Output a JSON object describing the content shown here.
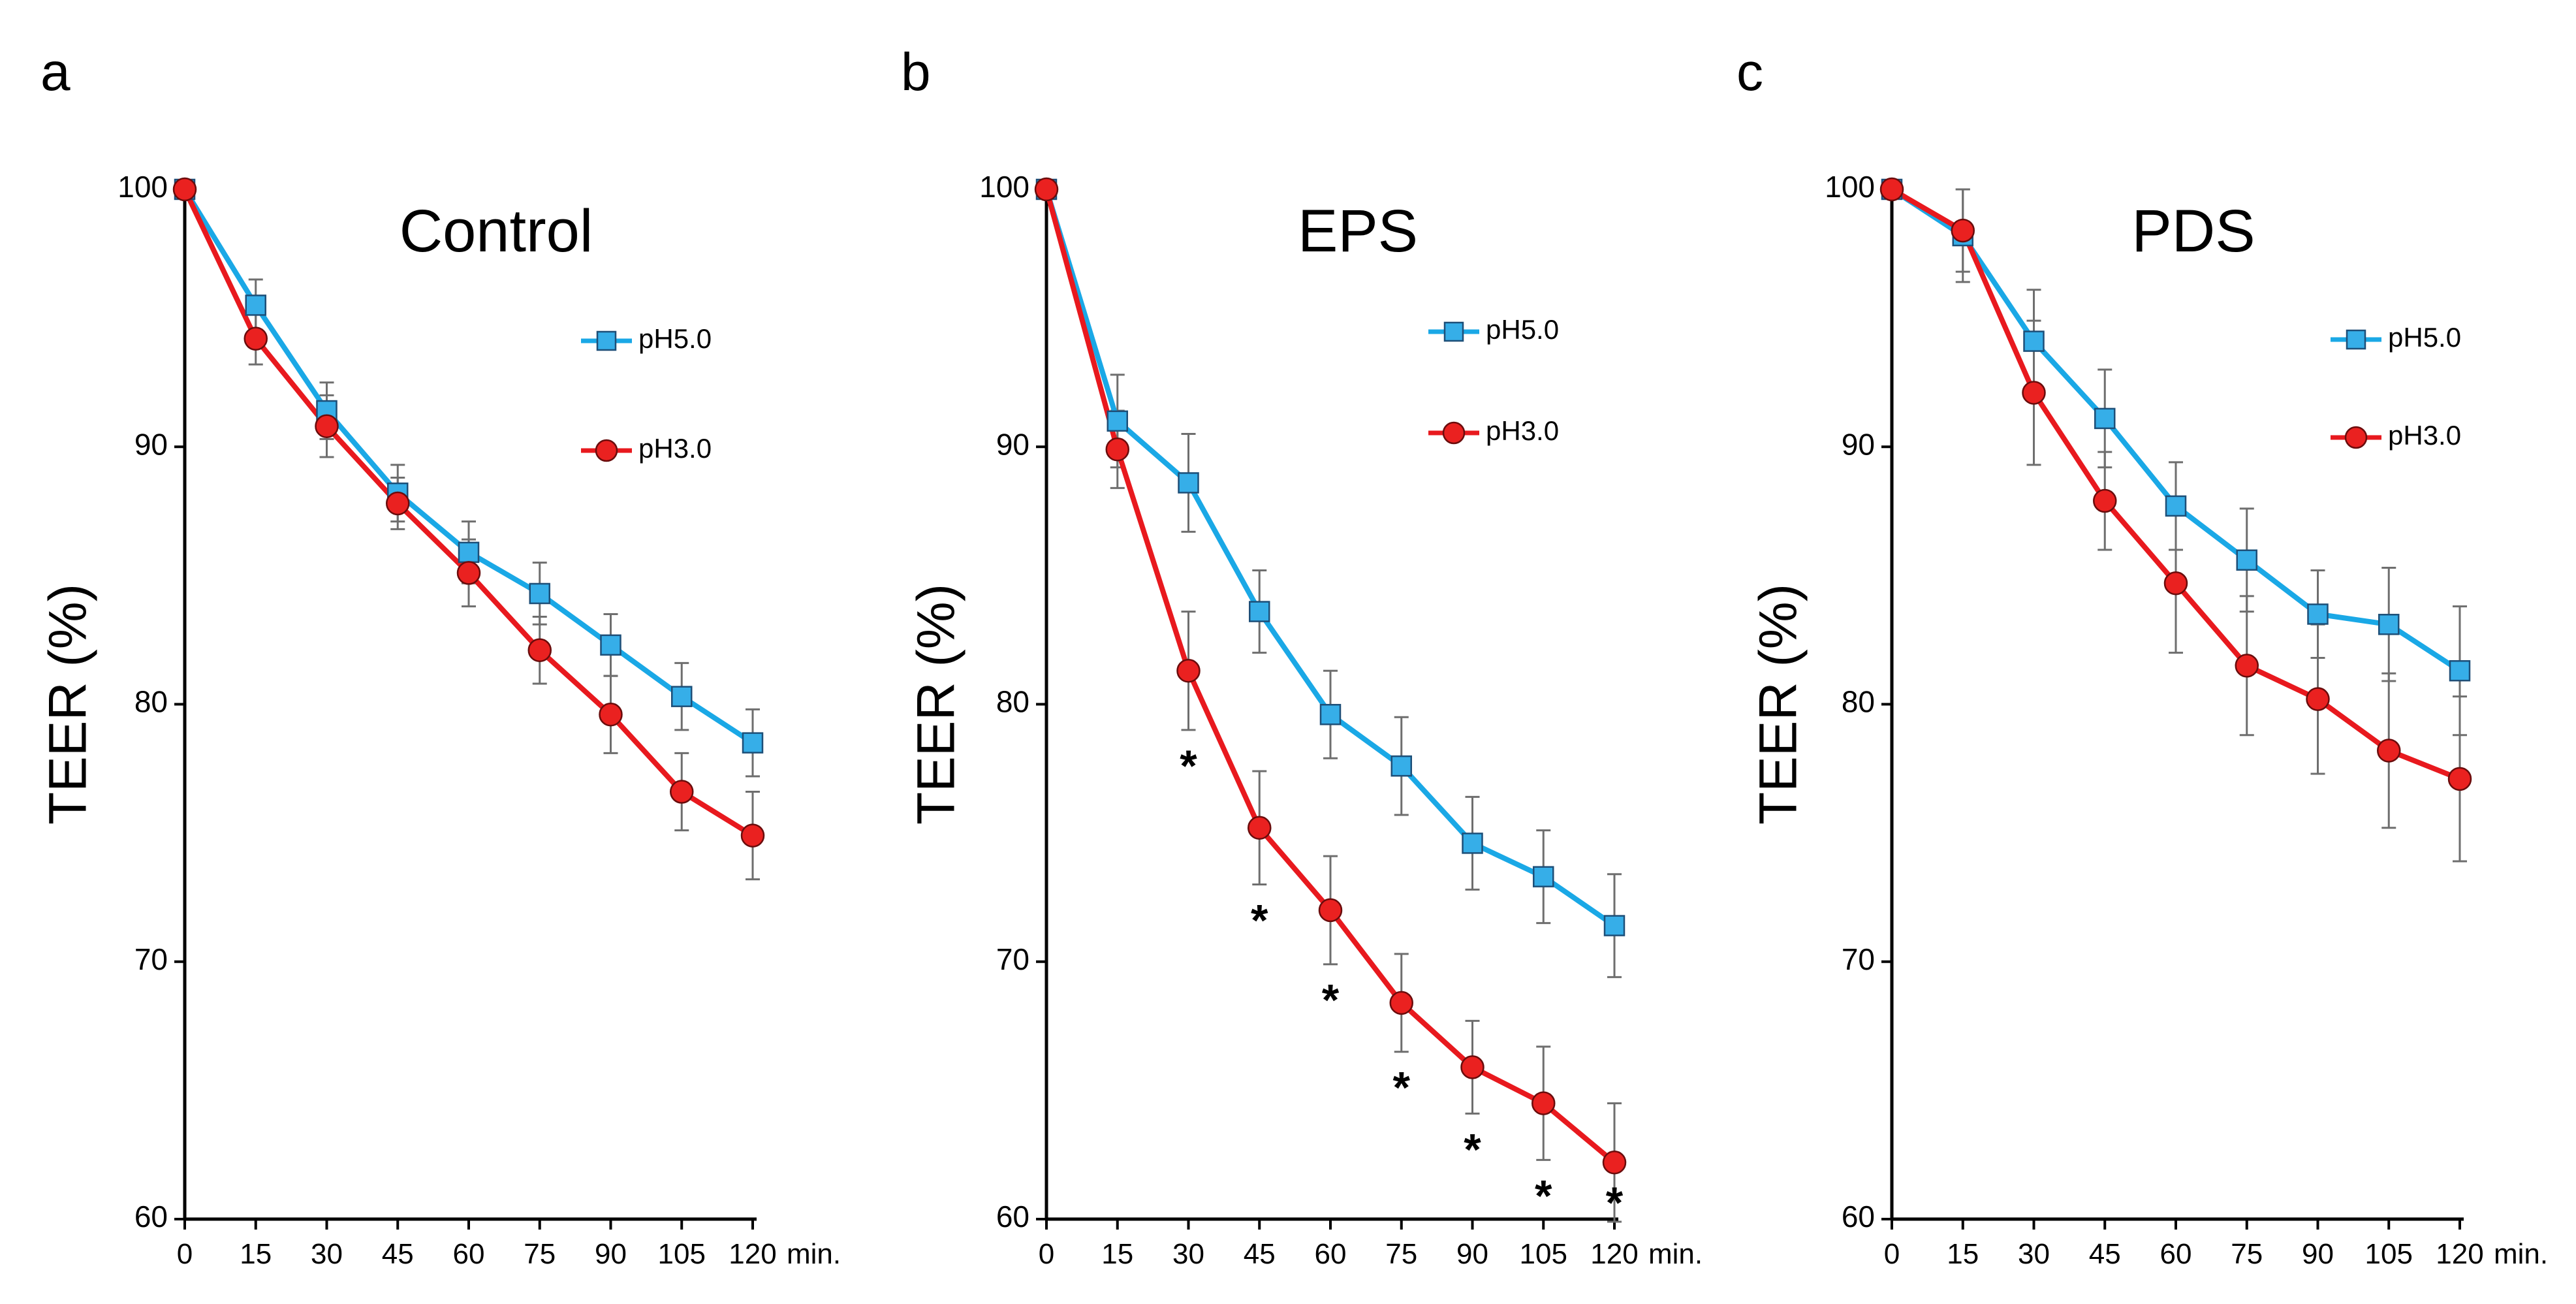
{
  "colors": {
    "ph50_line": "#1aa8e6",
    "ph50_marker": "#36aee8",
    "ph30_line": "#e8191e",
    "ph30_marker": "#ea2120",
    "errorbar": "#6e6e6e",
    "axis": "#000000"
  },
  "chart_data": [
    {
      "type": "line",
      "panel": "a",
      "title": "Control",
      "xlabel": "",
      "x_unit": "min.",
      "ylabel": "TEER (%)",
      "ylim": [
        60,
        100
      ],
      "yticks": [
        "60",
        "70",
        "80",
        "90",
        "100"
      ],
      "x": [
        0,
        15,
        30,
        45,
        60,
        75,
        90,
        105,
        120
      ],
      "x_ticklabels": [
        "0",
        "15",
        "30",
        "45",
        "60",
        "75",
        "90",
        "105",
        "120"
      ],
      "grid": false,
      "legend_position": "right",
      "series": [
        {
          "name": "pH5.0",
          "marker": "square",
          "values": [
            100,
            95.5,
            91.4,
            88.2,
            85.9,
            84.3,
            82.3,
            80.3,
            78.5
          ],
          "errors": [
            0,
            1.0,
            1.1,
            1.1,
            1.2,
            1.2,
            1.2,
            1.3,
            1.3
          ]
        },
        {
          "name": "pH3.0",
          "marker": "circle",
          "values": [
            100,
            94.2,
            90.8,
            87.8,
            85.1,
            82.1,
            79.6,
            76.6,
            74.9
          ],
          "errors": [
            0,
            1.0,
            1.2,
            1.0,
            1.3,
            1.3,
            1.5,
            1.5,
            1.7
          ]
        }
      ],
      "significance_markers": []
    },
    {
      "type": "line",
      "panel": "b",
      "title": "EPS",
      "xlabel": "",
      "x_unit": "min.",
      "ylabel": "TEER (%)",
      "ylim": [
        60,
        100
      ],
      "yticks": [
        "60",
        "70",
        "80",
        "90",
        "100"
      ],
      "x": [
        0,
        15,
        30,
        45,
        60,
        75,
        90,
        105,
        120
      ],
      "x_ticklabels": [
        "0",
        "15",
        "30",
        "45",
        "60",
        "75",
        "90",
        "105",
        "120"
      ],
      "grid": false,
      "legend_position": "top-right",
      "series": [
        {
          "name": "pH5.0",
          "marker": "square",
          "values": [
            100,
            91.0,
            88.6,
            83.6,
            79.6,
            77.6,
            74.6,
            73.3,
            71.4
          ],
          "errors": [
            0,
            1.8,
            1.9,
            1.6,
            1.7,
            1.9,
            1.8,
            1.8,
            2.0
          ]
        },
        {
          "name": "pH3.0",
          "marker": "circle",
          "values": [
            100,
            89.9,
            81.3,
            75.2,
            72.0,
            68.4,
            65.9,
            64.5,
            62.2
          ],
          "errors": [
            0,
            1.5,
            2.3,
            2.2,
            2.1,
            1.9,
            1.8,
            2.2,
            2.3
          ]
        }
      ],
      "significance_markers": [
        {
          "x": 30,
          "label": "*"
        },
        {
          "x": 45,
          "label": "*"
        },
        {
          "x": 60,
          "label": "*"
        },
        {
          "x": 75,
          "label": "*"
        },
        {
          "x": 90,
          "label": "*"
        },
        {
          "x": 105,
          "label": "*"
        },
        {
          "x": 120,
          "label": "*"
        }
      ]
    },
    {
      "type": "line",
      "panel": "c",
      "title": "PDS",
      "xlabel": "",
      "x_unit": "min.",
      "ylabel": "TEER (%)",
      "ylim": [
        60,
        100
      ],
      "yticks": [
        "60",
        "70",
        "80",
        "90",
        "100"
      ],
      "x": [
        0,
        15,
        30,
        45,
        60,
        75,
        90,
        105,
        120
      ],
      "x_ticklabels": [
        "0",
        "15",
        "30",
        "45",
        "60",
        "75",
        "90",
        "105",
        "120"
      ],
      "grid": false,
      "legend_position": "top-right",
      "series": [
        {
          "name": "pH5.0",
          "marker": "square",
          "values": [
            100,
            98.2,
            94.1,
            91.1,
            87.7,
            85.6,
            83.5,
            83.1,
            81.3
          ],
          "errors": [
            0,
            1.8,
            2.0,
            1.9,
            1.7,
            2.0,
            1.7,
            2.2,
            2.5
          ]
        },
        {
          "name": "pH3.0",
          "marker": "circle",
          "values": [
            100,
            98.4,
            92.1,
            87.9,
            84.7,
            81.5,
            80.2,
            78.2,
            77.1
          ],
          "errors": [
            0,
            1.6,
            2.8,
            1.9,
            2.7,
            2.7,
            2.9,
            3.0,
            3.2
          ]
        }
      ],
      "significance_markers": []
    }
  ]
}
